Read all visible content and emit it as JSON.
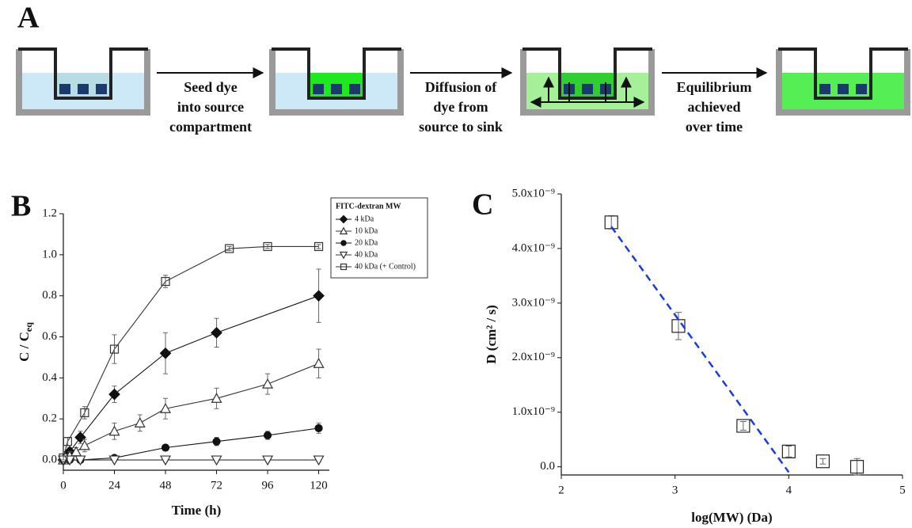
{
  "diagram": {
    "panel_label": "A",
    "steps": [
      {
        "lines": [
          "Seed dye",
          "into source",
          "compartment"
        ]
      },
      {
        "lines": [
          "Diffusion of",
          "dye from",
          "source to sink"
        ]
      },
      {
        "lines": [
          "Equilibrium",
          "achieved",
          "over time"
        ]
      }
    ]
  },
  "chart_data": [
    {
      "type": "line",
      "panel_label": "B",
      "xlabel": "Time (h)",
      "ylabel": "C / C",
      "ylabel_subscript": "eq",
      "legend_title": "FITC-dextran MW",
      "legend": "upper right",
      "xlim": [
        0,
        125
      ],
      "xticks": [
        0,
        24,
        48,
        72,
        96,
        120
      ],
      "ylim": [
        -0.05,
        1.2
      ],
      "yticks": [
        {
          "value": 0,
          "label": "0.0"
        },
        0.2,
        0.4,
        0.6,
        0.8,
        {
          "value": 1,
          "label": "1.0"
        },
        1.2
      ],
      "series": [
        {
          "name": "4 kDa",
          "marker": "diamond-filled",
          "color": "#111111",
          "x": [
            0,
            3,
            8,
            24,
            48,
            72,
            120
          ],
          "values": [
            0,
            0.04,
            0.11,
            0.32,
            0.52,
            0.62,
            0.8
          ],
          "errors": [
            0.01,
            0.02,
            0.03,
            0.04,
            0.1,
            0.07,
            0.13
          ]
        },
        {
          "name": "10 kDa",
          "marker": "triangle-up-open",
          "color": "#333333",
          "x": [
            0,
            3,
            6,
            10,
            24,
            36,
            48,
            72,
            96,
            120
          ],
          "values": [
            0,
            0.02,
            0.04,
            0.07,
            0.14,
            0.18,
            0.25,
            0.3,
            0.37,
            0.47
          ],
          "errors": [
            0.01,
            0.02,
            0.02,
            0.03,
            0.04,
            0.04,
            0.05,
            0.05,
            0.05,
            0.07
          ]
        },
        {
          "name": "20 kDa",
          "marker": "circle-filled",
          "color": "#111111",
          "x": [
            0,
            3,
            8,
            24,
            48,
            72,
            96,
            120
          ],
          "values": [
            0,
            0,
            0,
            0.01,
            0.06,
            0.09,
            0.12,
            0.155
          ],
          "errors": [
            0.01,
            0.01,
            0.01,
            0.01,
            0.01,
            0.02,
            0.02,
            0.025
          ]
        },
        {
          "name": "40 kDa",
          "marker": "triangle-down-open",
          "color": "#333333",
          "x": [
            0,
            3,
            8,
            24,
            48,
            72,
            96,
            120
          ],
          "values": [
            0,
            0,
            0,
            0,
            0,
            0,
            0,
            0
          ],
          "errors": [
            0.01,
            0.01,
            0.01,
            0.01,
            0.01,
            0.01,
            0.01,
            0.01
          ]
        },
        {
          "name": "40 kDa (+ Control)",
          "marker": "square-open",
          "color": "#333333",
          "x": [
            0,
            2,
            10,
            24,
            48,
            78,
            96,
            120
          ],
          "values": [
            0.01,
            0.09,
            0.23,
            0.54,
            0.87,
            1.03,
            1.04,
            1.04
          ],
          "errors": [
            0.01,
            0.02,
            0.03,
            0.07,
            0.03,
            0.01,
            0.01,
            0.01
          ]
        }
      ]
    },
    {
      "type": "scatter",
      "panel_label": "C",
      "xlabel": "log(MW) (Da)",
      "ylabel": "D (cm² / s)",
      "xlim": [
        2,
        5
      ],
      "xticks": [
        2,
        3,
        4,
        5
      ],
      "ylim": [
        -1.5e-10,
        5e-09
      ],
      "yticks": [
        {
          "value": 0,
          "label": "0.0"
        },
        {
          "value": 1e-09,
          "label": "1.0x10⁻⁹"
        },
        {
          "value": 2e-09,
          "label": "2.0x10⁻⁹"
        },
        {
          "value": 3e-09,
          "label": "3.0x10⁻⁹"
        },
        {
          "value": 4e-09,
          "label": "4.0x10⁻⁹"
        },
        {
          "value": 5e-09,
          "label": "5.0x10⁻⁹"
        }
      ],
      "series": [
        {
          "marker": "square-open",
          "color": "#222222",
          "x": [
            2.44,
            3.03,
            3.6,
            4.0,
            4.3,
            4.6
          ],
          "values": [
            4.48e-09,
            2.58e-09,
            7.5e-10,
            2.8e-10,
            1e-10,
            0
          ],
          "errors": [
            1.2e-10,
            2.5e-10,
            8e-11,
            1e-10,
            5e-11,
            1.5e-10
          ]
        }
      ],
      "fit": {
        "x": [
          2.44,
          4.0
        ],
        "y": [
          4.4e-09,
          -1e-10
        ],
        "color": "#1a3be0",
        "dash": true
      }
    }
  ]
}
